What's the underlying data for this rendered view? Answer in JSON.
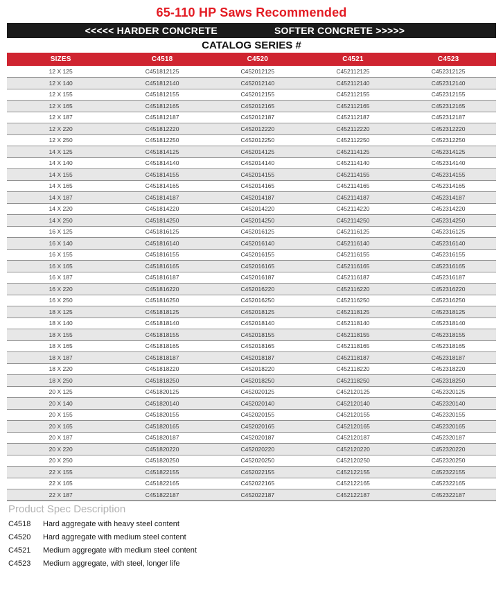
{
  "header": {
    "title": "65-110 HP Saws Recommended",
    "banner_left": "<<<<< HARDER CONCRETE",
    "banner_right": "SOFTER CONCRETE >>>>>",
    "catalog_heading": "CATALOG SERIES #"
  },
  "colors": {
    "title_red": "#e31b23",
    "header_red": "#cf2430",
    "banner_black": "#1b1b1b",
    "row_alt": "#e7e7e7",
    "row_border": "#8f8f8f",
    "spec_heading_gray": "#b3b3b3"
  },
  "table": {
    "columns": [
      "SIZES",
      "C4518",
      "C4520",
      "C4521",
      "C4523"
    ],
    "rows": [
      [
        "12 X 125",
        "C451812125",
        "C452012125",
        "C452112125",
        "C452312125"
      ],
      [
        "12 X 140",
        "C451812140",
        "C452012140",
        "C452112140",
        "C452312140"
      ],
      [
        "12 X 155",
        "C451812155",
        "C452012155",
        "C452112155",
        "C452312155"
      ],
      [
        "12 X 165",
        "C451812165",
        "C452012165",
        "C452112165",
        "C452312165"
      ],
      [
        "12 X 187",
        "C451812187",
        "C452012187",
        "C452112187",
        "C452312187"
      ],
      [
        "12 X 220",
        "C451812220",
        "C452012220",
        "C452112220",
        "C452312220"
      ],
      [
        "12 X 250",
        "C451812250",
        "C452012250",
        "C452112250",
        "C452312250"
      ],
      [
        "14 X 125",
        "C451814125",
        "C452014125",
        "C452114125",
        "C452314125"
      ],
      [
        "14 X 140",
        "C451814140",
        "C452014140",
        "C452114140",
        "C452314140"
      ],
      [
        "14 X 155",
        "C451814155",
        "C452014155",
        "C452114155",
        "C452314155"
      ],
      [
        "14 X 165",
        "C451814165",
        "C452014165",
        "C452114165",
        "C452314165"
      ],
      [
        "14 X 187",
        "C451814187",
        "C452014187",
        "C452114187",
        "C452314187"
      ],
      [
        "14 X 220",
        "C451814220",
        "C452014220",
        "C452114220",
        "C452314220"
      ],
      [
        "14 X 250",
        "C451814250",
        "C452014250",
        "C452114250",
        "C452314250"
      ],
      [
        "16 X 125",
        "C451816125",
        "C452016125",
        "C452116125",
        "C452316125"
      ],
      [
        "16 X 140",
        "C451816140",
        "C452016140",
        "C452116140",
        "C452316140"
      ],
      [
        "16 X 155",
        "C451816155",
        "C452016155",
        "C452116155",
        "C452316155"
      ],
      [
        "16 X 165",
        "C451816165",
        "C452016165",
        "C452116165",
        "C452316165"
      ],
      [
        "16 X 187",
        "C451816187",
        "C452016187",
        "C452116187",
        "C452316187"
      ],
      [
        "16 X 220",
        "C451816220",
        "C452016220",
        "C452116220",
        "C452316220"
      ],
      [
        "16 X 250",
        "C451816250",
        "C452016250",
        "C452116250",
        "C452316250"
      ],
      [
        "18 X 125",
        "C451818125",
        "C452018125",
        "C452118125",
        "C452318125"
      ],
      [
        "18 X 140",
        "C451818140",
        "C452018140",
        "C452118140",
        "C452318140"
      ],
      [
        "18 X 155",
        "C451818155",
        "C452018155",
        "C452118155",
        "C452318155"
      ],
      [
        "18 X 165",
        "C451818165",
        "C452018165",
        "C452118165",
        "C452318165"
      ],
      [
        "18 X 187",
        "C451818187",
        "C452018187",
        "C452118187",
        "C452318187"
      ],
      [
        "18 X 220",
        "C451818220",
        "C452018220",
        "C452118220",
        "C452318220"
      ],
      [
        "18 X 250",
        "C451818250",
        "C452018250",
        "C452118250",
        "C452318250"
      ],
      [
        "20 X 125",
        "C451820125",
        "C452020125",
        "C452120125",
        "C452320125"
      ],
      [
        "20 X 140",
        "C451820140",
        "C452020140",
        "C452120140",
        "C452320140"
      ],
      [
        "20 X 155",
        "C451820155",
        "C452020155",
        "C452120155",
        "C452320155"
      ],
      [
        "20 X 165",
        "C451820165",
        "C452020165",
        "C452120165",
        "C452320165"
      ],
      [
        "20 X 187",
        "C451820187",
        "C452020187",
        "C452120187",
        "C452320187"
      ],
      [
        "20 X 220",
        "C451820220",
        "C452020220",
        "C452120220",
        "C452320220"
      ],
      [
        "20 X 250",
        "C451820250",
        "C452020250",
        "C452120250",
        "C452320250"
      ],
      [
        "22 X 155",
        "C451822155",
        "C452022155",
        "C452122155",
        "C452322155"
      ],
      [
        "22 X 165",
        "C451822165",
        "C452022165",
        "C452122165",
        "C452322165"
      ],
      [
        "22 X 187",
        "C451822187",
        "C452022187",
        "C452122187",
        "C452322187"
      ]
    ]
  },
  "spec": {
    "heading": "Product Spec Description",
    "items": [
      {
        "code": "C4518",
        "description": "Hard aggregate with heavy steel content"
      },
      {
        "code": "C4520",
        "description": "Hard aggregate with medium steel content"
      },
      {
        "code": "C4521",
        "description": "Medium aggregate with medium steel content"
      },
      {
        "code": "C4523",
        "description": "Medium aggregate, with steel, longer life"
      }
    ]
  }
}
